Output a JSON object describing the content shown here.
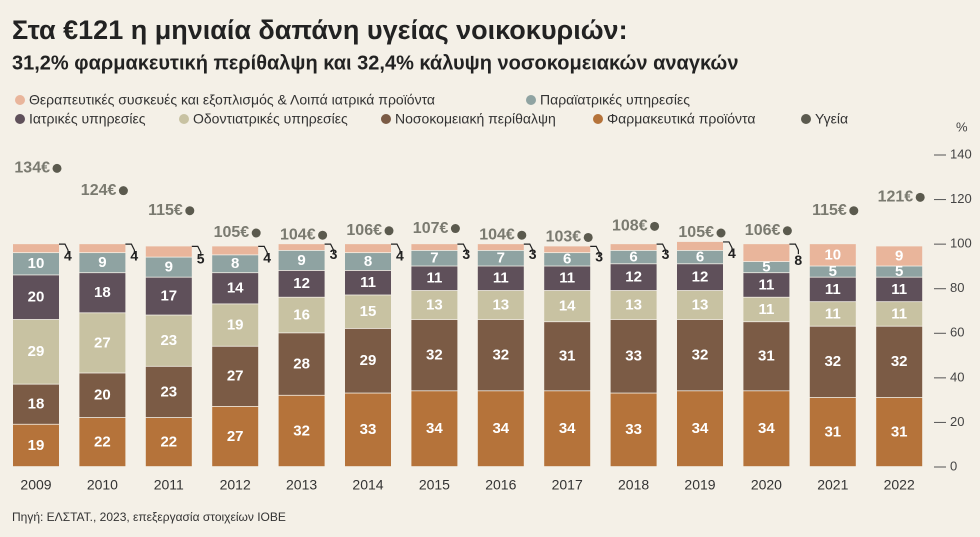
{
  "chart_data": {
    "type": "stacked-bar",
    "title": "Στα €121 η μηνιαία δαπάνη υγείας νοικοκυριών:",
    "subtitle": "31,2% φαρμακευτική περίθαλψη και 32,4% κάλυψη νοσοκομειακών αναγκών",
    "ylabel": "%",
    "source": "Πηγή: ΕΛΣΤΑΤ., 2023, επεξεργασία στοιχείων ΙΟΒΕ",
    "categories": [
      "2009",
      "2010",
      "2011",
      "2012",
      "2013",
      "2014",
      "2015",
      "2016",
      "2017",
      "2018",
      "2019",
      "2020",
      "2021",
      "2022"
    ],
    "series": [
      {
        "name": "Φαρμακευτικά προϊόντα",
        "color": "#b5733a",
        "values": [
          19,
          22,
          22,
          27,
          32,
          33,
          34,
          34,
          34,
          33,
          34,
          34,
          31,
          31
        ]
      },
      {
        "name": "Νοσοκομειακή περίθαλψη",
        "color": "#7b5b45",
        "values": [
          18,
          20,
          23,
          27,
          28,
          29,
          32,
          32,
          31,
          33,
          32,
          31,
          32,
          32
        ]
      },
      {
        "name": "Οδοντιατρικές υπηρεσίες",
        "color": "#c8c2a2",
        "values": [
          29,
          27,
          23,
          19,
          16,
          15,
          13,
          13,
          14,
          13,
          13,
          11,
          11,
          11
        ]
      },
      {
        "name": "Ιατρικές υπηρεσίες",
        "color": "#5f505a",
        "values": [
          20,
          18,
          17,
          14,
          12,
          11,
          11,
          11,
          11,
          12,
          12,
          11,
          11,
          11
        ]
      },
      {
        "name": "Παραϊατρικές υπηρεσίες",
        "color": "#8fa3a2",
        "values": [
          10,
          9,
          9,
          8,
          9,
          8,
          7,
          7,
          6,
          6,
          6,
          5,
          5,
          5
        ]
      },
      {
        "name": "Θεραπευτικές συσκευές και εξοπλισμός & Λοιπά ιατρικά προϊόντα",
        "color": "#e9b59b",
        "values": [
          4,
          4,
          5,
          4,
          3,
          4,
          3,
          3,
          3,
          3,
          4,
          8,
          10,
          9
        ]
      }
    ],
    "totals": {
      "name": "Υγεία",
      "color": "#5b5a4e",
      "values": [
        134,
        124,
        115,
        105,
        104,
        106,
        107,
        104,
        103,
        108,
        105,
        106,
        115,
        121
      ],
      "value_labels": [
        "134€",
        "124€",
        "115€",
        "105€",
        "104€",
        "106€",
        "107€",
        "104€",
        "103€",
        "108€",
        "105€",
        "106€",
        "115€",
        "121€"
      ]
    },
    "ylim": [
      0,
      140
    ],
    "yticks": [
      0,
      20,
      40,
      60,
      80,
      100,
      120,
      140
    ]
  }
}
